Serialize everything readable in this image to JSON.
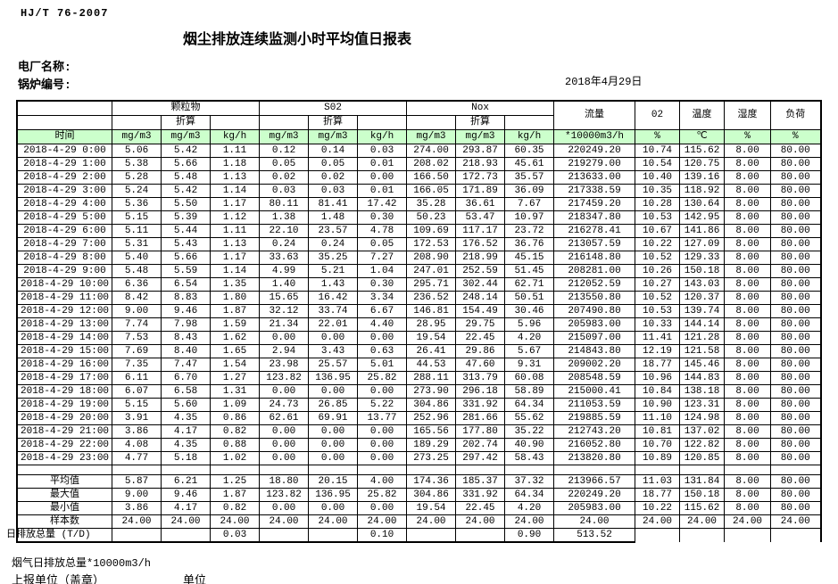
{
  "page": {
    "standard_code": "HJ/T  76-2007",
    "title": "烟尘排放连续监测小时平均值日报表",
    "plant_name_label": "电厂名称:",
    "boiler_no_label": "锅炉编号:",
    "date": "2018年4月29日",
    "footer_note": "烟气日排放总量*10000m3/h",
    "report_unit_label": "上报单位（盖章）",
    "unit_label": "单位"
  },
  "colors": {
    "header_green": "#ccffcc"
  },
  "table": {
    "header": {
      "time_label": "时间",
      "groups": [
        {
          "label": "颗粒物"
        },
        {
          "label": "S02"
        },
        {
          "label": "Nox"
        }
      ],
      "converted_label": "折算",
      "flow_label": "流量",
      "o2_label": "02",
      "temp_label": "温度",
      "humidity_label": "湿度",
      "load_label": "负荷",
      "units": [
        "mg/m3",
        "mg/m3",
        "kg/h",
        "mg/m3",
        "mg/m3",
        "kg/h",
        "mg/m3",
        "mg/m3",
        "kg/h",
        "*10000m3/h",
        "%",
        "℃",
        "%",
        "%"
      ]
    },
    "rows": [
      {
        "time": "2018-4-29 0:00",
        "values": [
          "5.06",
          "5.42",
          "1.11",
          "0.12",
          "0.14",
          "0.03",
          "274.00",
          "293.87",
          "60.35",
          "220249.20",
          "10.74",
          "115.62",
          "8.00",
          "80.00"
        ]
      },
      {
        "time": "2018-4-29 1:00",
        "values": [
          "5.38",
          "5.66",
          "1.18",
          "0.05",
          "0.05",
          "0.01",
          "208.02",
          "218.93",
          "45.61",
          "219279.00",
          "10.54",
          "120.75",
          "8.00",
          "80.00"
        ]
      },
      {
        "time": "2018-4-29 2:00",
        "values": [
          "5.28",
          "5.48",
          "1.13",
          "0.02",
          "0.02",
          "0.00",
          "166.50",
          "172.73",
          "35.57",
          "213633.00",
          "10.40",
          "139.16",
          "8.00",
          "80.00"
        ]
      },
      {
        "time": "2018-4-29 3:00",
        "values": [
          "5.24",
          "5.42",
          "1.14",
          "0.03",
          "0.03",
          "0.01",
          "166.05",
          "171.89",
          "36.09",
          "217338.59",
          "10.35",
          "118.92",
          "8.00",
          "80.00"
        ]
      },
      {
        "time": "2018-4-29 4:00",
        "values": [
          "5.36",
          "5.50",
          "1.17",
          "80.11",
          "81.41",
          "17.42",
          "35.28",
          "36.61",
          "7.67",
          "217459.20",
          "10.28",
          "130.64",
          "8.00",
          "80.00"
        ]
      },
      {
        "time": "2018-4-29 5:00",
        "values": [
          "5.15",
          "5.39",
          "1.12",
          "1.38",
          "1.48",
          "0.30",
          "50.23",
          "53.47",
          "10.97",
          "218347.80",
          "10.53",
          "142.95",
          "8.00",
          "80.00"
        ]
      },
      {
        "time": "2018-4-29 6:00",
        "values": [
          "5.11",
          "5.44",
          "1.11",
          "22.10",
          "23.57",
          "4.78",
          "109.69",
          "117.17",
          "23.72",
          "216278.41",
          "10.67",
          "141.86",
          "8.00",
          "80.00"
        ]
      },
      {
        "time": "2018-4-29 7:00",
        "values": [
          "5.31",
          "5.43",
          "1.13",
          "0.24",
          "0.24",
          "0.05",
          "172.53",
          "176.52",
          "36.76",
          "213057.59",
          "10.22",
          "127.09",
          "8.00",
          "80.00"
        ]
      },
      {
        "time": "2018-4-29 8:00",
        "values": [
          "5.40",
          "5.66",
          "1.17",
          "33.63",
          "35.25",
          "7.27",
          "208.90",
          "218.99",
          "45.15",
          "216148.80",
          "10.52",
          "129.33",
          "8.00",
          "80.00"
        ]
      },
      {
        "time": "2018-4-29 9:00",
        "values": [
          "5.48",
          "5.59",
          "1.14",
          "4.99",
          "5.21",
          "1.04",
          "247.01",
          "252.59",
          "51.45",
          "208281.00",
          "10.26",
          "150.18",
          "8.00",
          "80.00"
        ]
      },
      {
        "time": "2018-4-29 10:00",
        "values": [
          "6.36",
          "6.54",
          "1.35",
          "1.40",
          "1.43",
          "0.30",
          "295.71",
          "302.44",
          "62.71",
          "212052.59",
          "10.27",
          "143.03",
          "8.00",
          "80.00"
        ]
      },
      {
        "time": "2018-4-29 11:00",
        "values": [
          "8.42",
          "8.83",
          "1.80",
          "15.65",
          "16.42",
          "3.34",
          "236.52",
          "248.14",
          "50.51",
          "213550.80",
          "10.52",
          "120.37",
          "8.00",
          "80.00"
        ]
      },
      {
        "time": "2018-4-29 12:00",
        "values": [
          "9.00",
          "9.46",
          "1.87",
          "32.12",
          "33.74",
          "6.67",
          "146.81",
          "154.49",
          "30.46",
          "207490.80",
          "10.53",
          "139.74",
          "8.00",
          "80.00"
        ]
      },
      {
        "time": "2018-4-29 13:00",
        "values": [
          "7.74",
          "7.98",
          "1.59",
          "21.34",
          "22.01",
          "4.40",
          "28.95",
          "29.75",
          "5.96",
          "205983.00",
          "10.33",
          "144.14",
          "8.00",
          "80.00"
        ]
      },
      {
        "time": "2018-4-29 14:00",
        "values": [
          "7.53",
          "8.43",
          "1.62",
          "0.00",
          "0.00",
          "0.00",
          "19.54",
          "22.45",
          "4.20",
          "215097.00",
          "11.41",
          "121.28",
          "8.00",
          "80.00"
        ]
      },
      {
        "time": "2018-4-29 15:00",
        "values": [
          "7.69",
          "8.40",
          "1.65",
          "2.94",
          "3.43",
          "0.63",
          "26.41",
          "29.86",
          "5.67",
          "214843.80",
          "12.19",
          "121.58",
          "8.00",
          "80.00"
        ]
      },
      {
        "time": "2018-4-29 16:00",
        "values": [
          "7.35",
          "7.47",
          "1.54",
          "23.98",
          "25.57",
          "5.01",
          "44.53",
          "47.60",
          "9.31",
          "209002.20",
          "18.77",
          "145.46",
          "8.00",
          "80.00"
        ]
      },
      {
        "time": "2018-4-29 17:00",
        "values": [
          "6.11",
          "6.70",
          "1.27",
          "123.82",
          "136.95",
          "25.82",
          "288.11",
          "313.79",
          "60.08",
          "208548.59",
          "10.96",
          "144.83",
          "8.00",
          "80.00"
        ]
      },
      {
        "time": "2018-4-29 18:00",
        "values": [
          "6.07",
          "6.58",
          "1.31",
          "0.00",
          "0.00",
          "0.00",
          "273.90",
          "296.18",
          "58.89",
          "215000.41",
          "10.84",
          "138.18",
          "8.00",
          "80.00"
        ]
      },
      {
        "time": "2018-4-29 19:00",
        "values": [
          "5.15",
          "5.60",
          "1.09",
          "24.73",
          "26.85",
          "5.22",
          "304.86",
          "331.92",
          "64.34",
          "211053.59",
          "10.90",
          "123.31",
          "8.00",
          "80.00"
        ]
      },
      {
        "time": "2018-4-29 20:00",
        "values": [
          "3.91",
          "4.35",
          "0.86",
          "62.61",
          "69.91",
          "13.77",
          "252.96",
          "281.66",
          "55.62",
          "219885.59",
          "11.10",
          "124.98",
          "8.00",
          "80.00"
        ]
      },
      {
        "time": "2018-4-29 21:00",
        "values": [
          "3.86",
          "4.17",
          "0.82",
          "0.00",
          "0.00",
          "0.00",
          "165.56",
          "177.80",
          "35.22",
          "212743.20",
          "10.81",
          "137.02",
          "8.00",
          "80.00"
        ]
      },
      {
        "time": "2018-4-29 22:00",
        "values": [
          "4.08",
          "4.35",
          "0.88",
          "0.00",
          "0.00",
          "0.00",
          "189.29",
          "202.74",
          "40.90",
          "216052.80",
          "10.70",
          "122.82",
          "8.00",
          "80.00"
        ]
      },
      {
        "time": "2018-4-29 23:00",
        "values": [
          "4.77",
          "5.18",
          "1.02",
          "0.00",
          "0.00",
          "0.00",
          "273.25",
          "297.42",
          "58.43",
          "213820.80",
          "10.89",
          "120.85",
          "8.00",
          "80.00"
        ]
      }
    ],
    "summary_rows": [
      {
        "label": "平均值",
        "values": [
          "5.87",
          "6.21",
          "1.25",
          "18.80",
          "20.15",
          "4.00",
          "174.36",
          "185.37",
          "37.32",
          "213966.57",
          "11.03",
          "131.84",
          "8.00",
          "80.00"
        ]
      },
      {
        "label": "最大值",
        "values": [
          "9.00",
          "9.46",
          "1.87",
          "123.82",
          "136.95",
          "25.82",
          "304.86",
          "331.92",
          "64.34",
          "220249.20",
          "18.77",
          "150.18",
          "8.00",
          "80.00"
        ]
      },
      {
        "label": "最小值",
        "values": [
          "3.86",
          "4.17",
          "0.82",
          "0.00",
          "0.00",
          "0.00",
          "19.54",
          "22.45",
          "4.20",
          "205983.00",
          "10.22",
          "115.62",
          "8.00",
          "80.00"
        ]
      },
      {
        "label": "样本数",
        "values": [
          "24.00",
          "24.00",
          "24.00",
          "24.00",
          "24.00",
          "24.00",
          "24.00",
          "24.00",
          "24.00",
          "24.00",
          "24.00",
          "24.00",
          "24.00",
          "24.00"
        ]
      }
    ],
    "total_row": {
      "label": "日排放总量 (T/D)",
      "values": [
        "",
        "",
        "0.03",
        "",
        "",
        "0.10",
        "",
        "",
        "0.90",
        "513.52",
        "",
        "",
        "",
        ""
      ]
    }
  }
}
